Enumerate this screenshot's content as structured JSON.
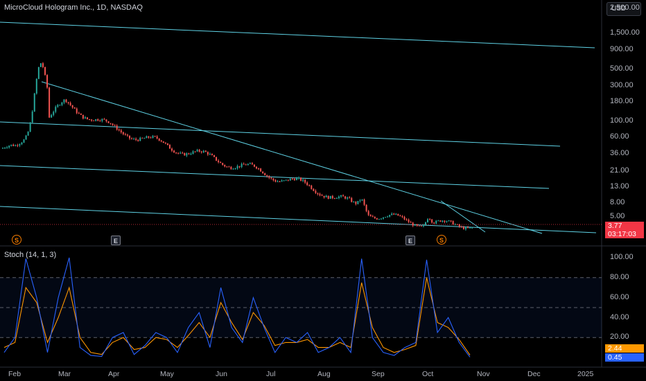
{
  "header": {
    "title": "MicroCloud Hologram Inc., 1D, NASDAQ",
    "currency": "USD"
  },
  "stoch": {
    "title": "Stoch (14, 1, 3)"
  },
  "price_axis_labels": [
    "2,500.00",
    "1,500.00",
    "900.00",
    "500.00",
    "300.00",
    "180.00",
    "100.00",
    "60.00",
    "36.00",
    "21.00",
    "13.00",
    "8.00",
    "5.00"
  ],
  "stoch_axis_labels": [
    "100.00",
    "80.00",
    "60.00",
    "40.00",
    "20.00"
  ],
  "x_axis_labels": [
    "Feb",
    "Mar",
    "Apr",
    "May",
    "Jun",
    "Jul",
    "Aug",
    "Sep",
    "Oct",
    "Nov",
    "Dec",
    "2025"
  ],
  "badges": {
    "price": "3.77",
    "countdown": "03:17:03",
    "stoch_d": "2.44",
    "stoch_k": "0.45"
  },
  "event_markers": [
    "S",
    "E",
    "E",
    "S"
  ],
  "colors": {
    "up": "#26a69a",
    "down": "#ef5350",
    "trendline": "#5fd3e6",
    "stoch_k": "#2962ff",
    "stoch_d": "#ff9800",
    "price_badge": "#f23645"
  },
  "chart_data": [
    {
      "type": "candlestick",
      "title": "MicroCloud Hologram Inc., 1D, NASDAQ",
      "y_scale": "log",
      "ylim": [
        4,
        2500
      ],
      "x_ticks": [
        "Feb",
        "Mar",
        "Apr",
        "May",
        "Jun",
        "Jul",
        "Aug",
        "Sep",
        "Oct",
        "Nov",
        "Dec",
        "2025"
      ],
      "last_price": 3.77,
      "series": [
        {
          "name": "price",
          "x": [
            "Feb",
            "Mar",
            "Apr",
            "May",
            "Jun",
            "Jul",
            "Aug",
            "Sep",
            "Oct"
          ],
          "values": [
            40,
            170,
            75,
            45,
            28,
            18,
            11,
            5,
            3.77
          ]
        }
      ]
    },
    {
      "type": "line",
      "title": "Stoch (14, 1, 3)",
      "ylim": [
        0,
        100
      ],
      "bands": [
        20,
        50,
        80
      ],
      "x_ticks": [
        "Feb",
        "Mar",
        "Apr",
        "May",
        "Jun",
        "Jul",
        "Aug",
        "Sep",
        "Oct",
        "Nov",
        "Dec",
        "2025"
      ],
      "series": [
        {
          "name": "%K",
          "values": [
            5,
            20,
            99,
            60,
            5,
            60,
            100,
            10,
            2,
            1,
            20,
            25,
            3,
            12,
            25,
            20,
            5,
            30,
            45,
            10,
            70,
            30,
            15,
            60,
            30,
            5,
            20,
            15,
            25,
            5,
            10,
            20,
            5,
            99,
            20,
            5,
            2,
            10,
            15,
            98,
            25,
            40,
            15,
            0.45
          ]
        },
        {
          "name": "%D",
          "values": [
            10,
            15,
            70,
            55,
            15,
            40,
            70,
            20,
            5,
            3,
            15,
            20,
            8,
            10,
            20,
            18,
            10,
            22,
            35,
            20,
            55,
            35,
            18,
            45,
            32,
            12,
            15,
            15,
            18,
            10,
            10,
            15,
            10,
            75,
            30,
            10,
            5,
            8,
            12,
            80,
            35,
            30,
            18,
            2.44
          ]
        }
      ]
    }
  ]
}
